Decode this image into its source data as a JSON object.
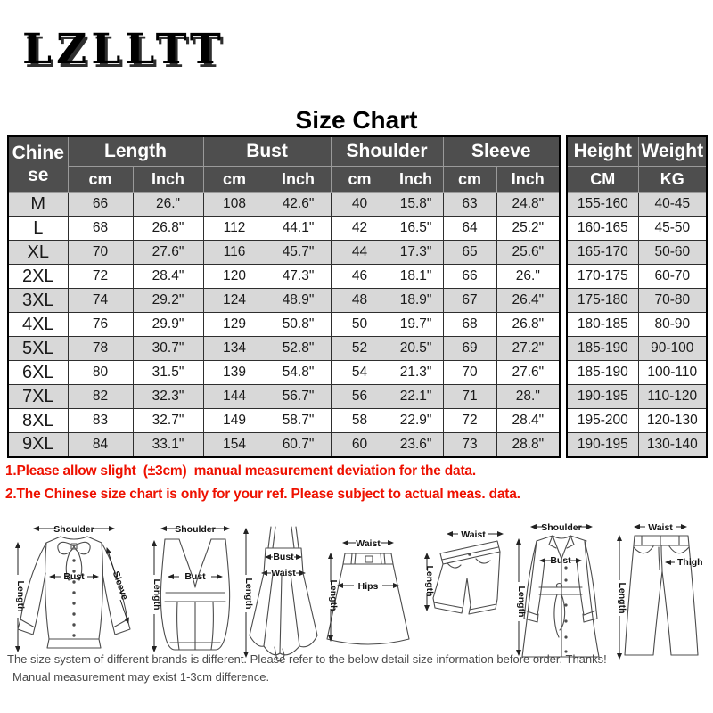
{
  "brand": {
    "logo_text": "LZLLTT"
  },
  "title": "Size Chart",
  "table": {
    "size_header": "Chinese",
    "size_header_lines": [
      "Chine",
      "se"
    ],
    "groups": [
      {
        "label": "Length",
        "sub": [
          "cm",
          "Inch"
        ]
      },
      {
        "label": "Bust",
        "sub": [
          "cm",
          "Inch"
        ]
      },
      {
        "label": "Shoulder",
        "sub": [
          "cm",
          "Inch"
        ]
      },
      {
        "label": "Sleeve",
        "sub": [
          "cm",
          "Inch"
        ]
      }
    ],
    "extra": [
      {
        "label": "Height",
        "sub": "CM"
      },
      {
        "label": "Weight",
        "sub": "KG"
      }
    ],
    "rows": [
      [
        "M",
        "66",
        "26.\"",
        "108",
        "42.6\"",
        "40",
        "15.8\"",
        "63",
        "24.8\"",
        "155-160",
        "40-45"
      ],
      [
        "L",
        "68",
        "26.8\"",
        "112",
        "44.1\"",
        "42",
        "16.5\"",
        "64",
        "25.2\"",
        "160-165",
        "45-50"
      ],
      [
        "XL",
        "70",
        "27.6\"",
        "116",
        "45.7\"",
        "44",
        "17.3\"",
        "65",
        "25.6\"",
        "165-170",
        "50-60"
      ],
      [
        "2XL",
        "72",
        "28.4\"",
        "120",
        "47.3\"",
        "46",
        "18.1\"",
        "66",
        "26.\"",
        "170-175",
        "60-70"
      ],
      [
        "3XL",
        "74",
        "29.2\"",
        "124",
        "48.9\"",
        "48",
        "18.9\"",
        "67",
        "26.4\"",
        "175-180",
        "70-80"
      ],
      [
        "4XL",
        "76",
        "29.9\"",
        "129",
        "50.8\"",
        "50",
        "19.7\"",
        "68",
        "26.8\"",
        "180-185",
        "80-90"
      ],
      [
        "5XL",
        "78",
        "30.7\"",
        "134",
        "52.8\"",
        "52",
        "20.5\"",
        "69",
        "27.2\"",
        "185-190",
        "90-100"
      ],
      [
        "6XL",
        "80",
        "31.5\"",
        "139",
        "54.8\"",
        "54",
        "21.3\"",
        "70",
        "27.6\"",
        "185-190",
        "100-110"
      ],
      [
        "7XL",
        "82",
        "32.3\"",
        "144",
        "56.7\"",
        "56",
        "22.1\"",
        "71",
        "28.\"",
        "190-195",
        "110-120"
      ],
      [
        "8XL",
        "83",
        "32.7\"",
        "149",
        "58.7\"",
        "58",
        "22.9\"",
        "72",
        "28.4\"",
        "195-200",
        "120-130"
      ],
      [
        "9XL",
        "84",
        "33.1\"",
        "154",
        "60.7\"",
        "60",
        "23.6\"",
        "73",
        "28.8\"",
        "190-195",
        "130-140"
      ]
    ]
  },
  "notes_red": [
    "1.Please allow slight  (±3cm)  manual measurement deviation for the data.",
    "2.The Chinese size chart is only for your ref. Please subject to actual meas. data."
  ],
  "diagrams": {
    "garments": [
      {
        "name": "blouse",
        "labels": [
          "Shoulder",
          "Length",
          "Bust",
          "Sleeve"
        ]
      },
      {
        "name": "vest",
        "labels": [
          "Shoulder",
          "Length",
          "Bust"
        ]
      },
      {
        "name": "slip-dress",
        "labels": [
          "Length",
          "Bust",
          "Waist"
        ]
      },
      {
        "name": "skirt",
        "labels": [
          "Waist",
          "Length",
          "Hips"
        ]
      },
      {
        "name": "shorts",
        "labels": [
          "Waist",
          "Length"
        ]
      },
      {
        "name": "coat",
        "labels": [
          "Shoulder",
          "Bust",
          "Length"
        ]
      },
      {
        "name": "pants",
        "labels": [
          "Waist",
          "Length",
          "Thigh"
        ]
      }
    ]
  },
  "notes_gray": [
    "The size system of different brands is different. Please refer to the below detail size information before order. Thanks!",
    "Manual measurement may exist 1-3cm difference."
  ],
  "colors": {
    "header_bg": "#4e4e4e",
    "header_text": "#ffffff",
    "row_alt_bg": "#d8d8d8",
    "border": "#1f1f1f",
    "note_red": "#ee1100",
    "note_gray": "#4a4a4a"
  }
}
